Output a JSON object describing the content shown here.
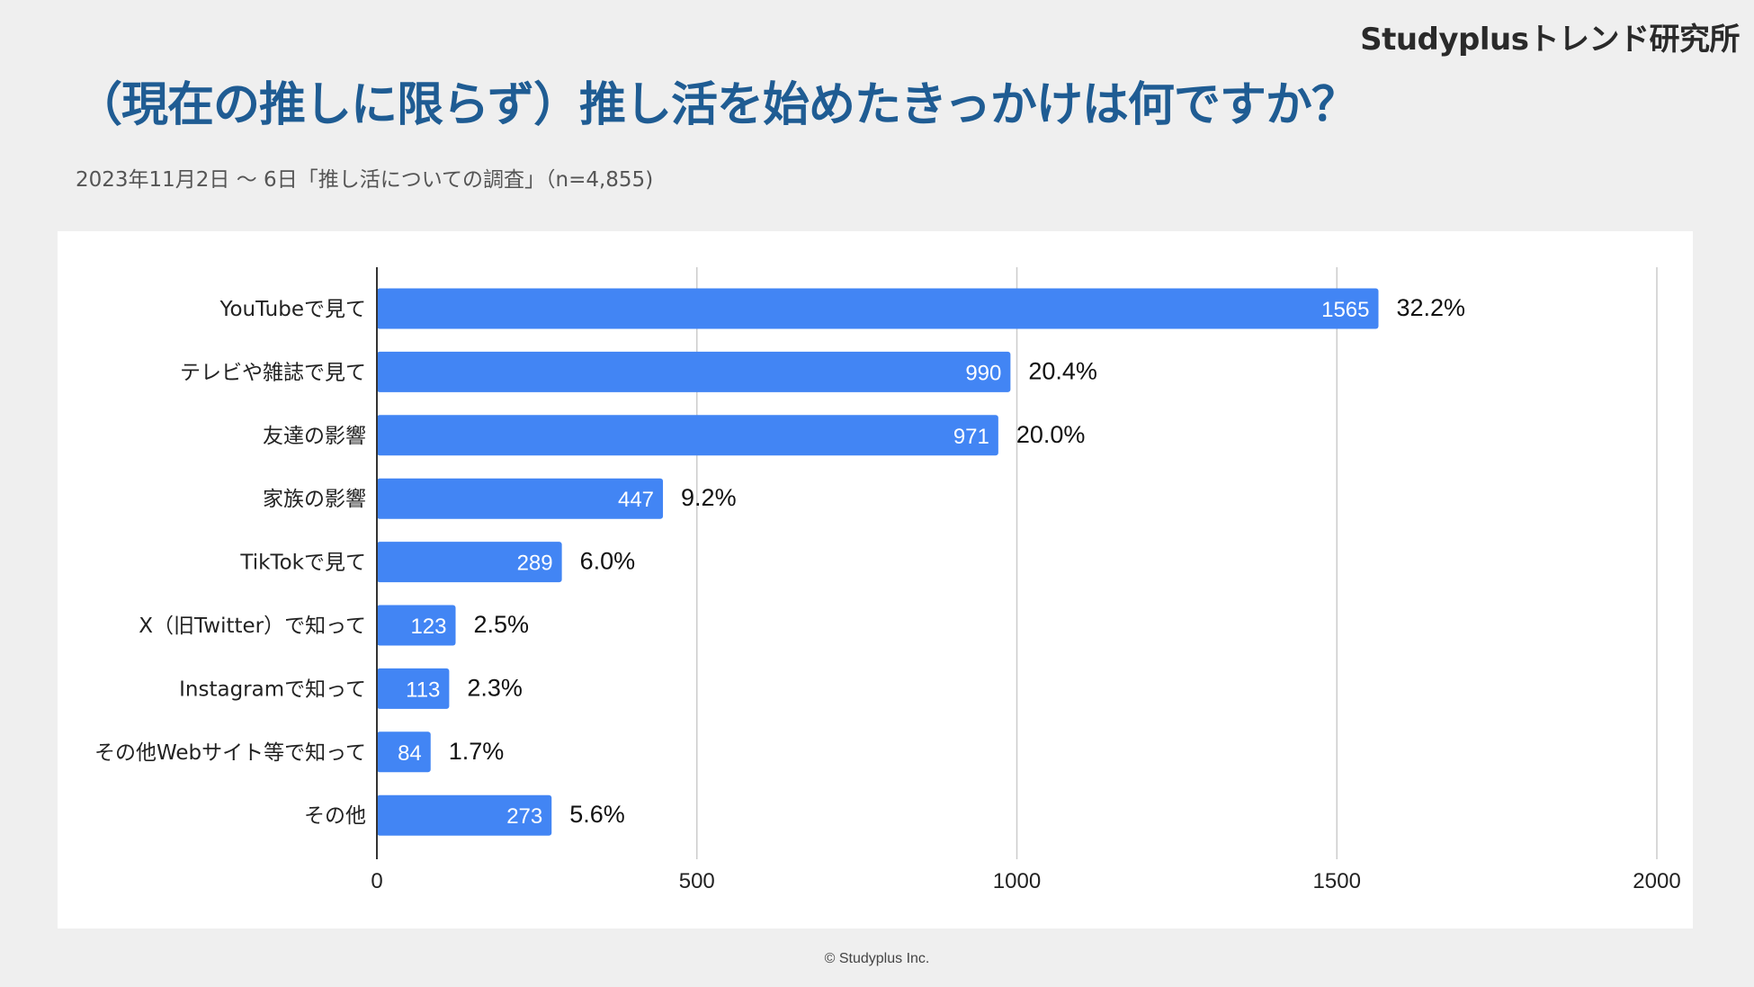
{
  "brand": "Studyplusトレンド研究所",
  "copyright": "© Studyplus Inc.",
  "chart_data": {
    "type": "bar",
    "orientation": "horizontal",
    "title": "（現在の推しに限らず）推し活を始めたきっかけは何ですか？",
    "subtitle": "2023年11月2日 〜 6日「推し活についての調査」（n=4,855)",
    "categories": [
      "YouTubeで見て",
      "テレビや雑誌で見て",
      "友達の影響",
      "家族の影響",
      "TikTokで見て",
      "X（旧Twitter）で知って",
      "Instagramで知って",
      "その他Webサイト等で知って",
      "その他"
    ],
    "values": [
      1565,
      990,
      971,
      447,
      289,
      123,
      113,
      84,
      273
    ],
    "percent_labels": [
      "32.2%",
      "20.4%",
      "20.0%",
      "9.2%",
      "6.0%",
      "2.5%",
      "2.3%",
      "1.7%",
      "5.6%"
    ],
    "xlim": [
      0,
      2000
    ],
    "xticks": [
      0,
      500,
      1000,
      1500,
      2000
    ],
    "grid": true,
    "bar_color": "#4285f4",
    "xlabel": "",
    "ylabel": ""
  }
}
